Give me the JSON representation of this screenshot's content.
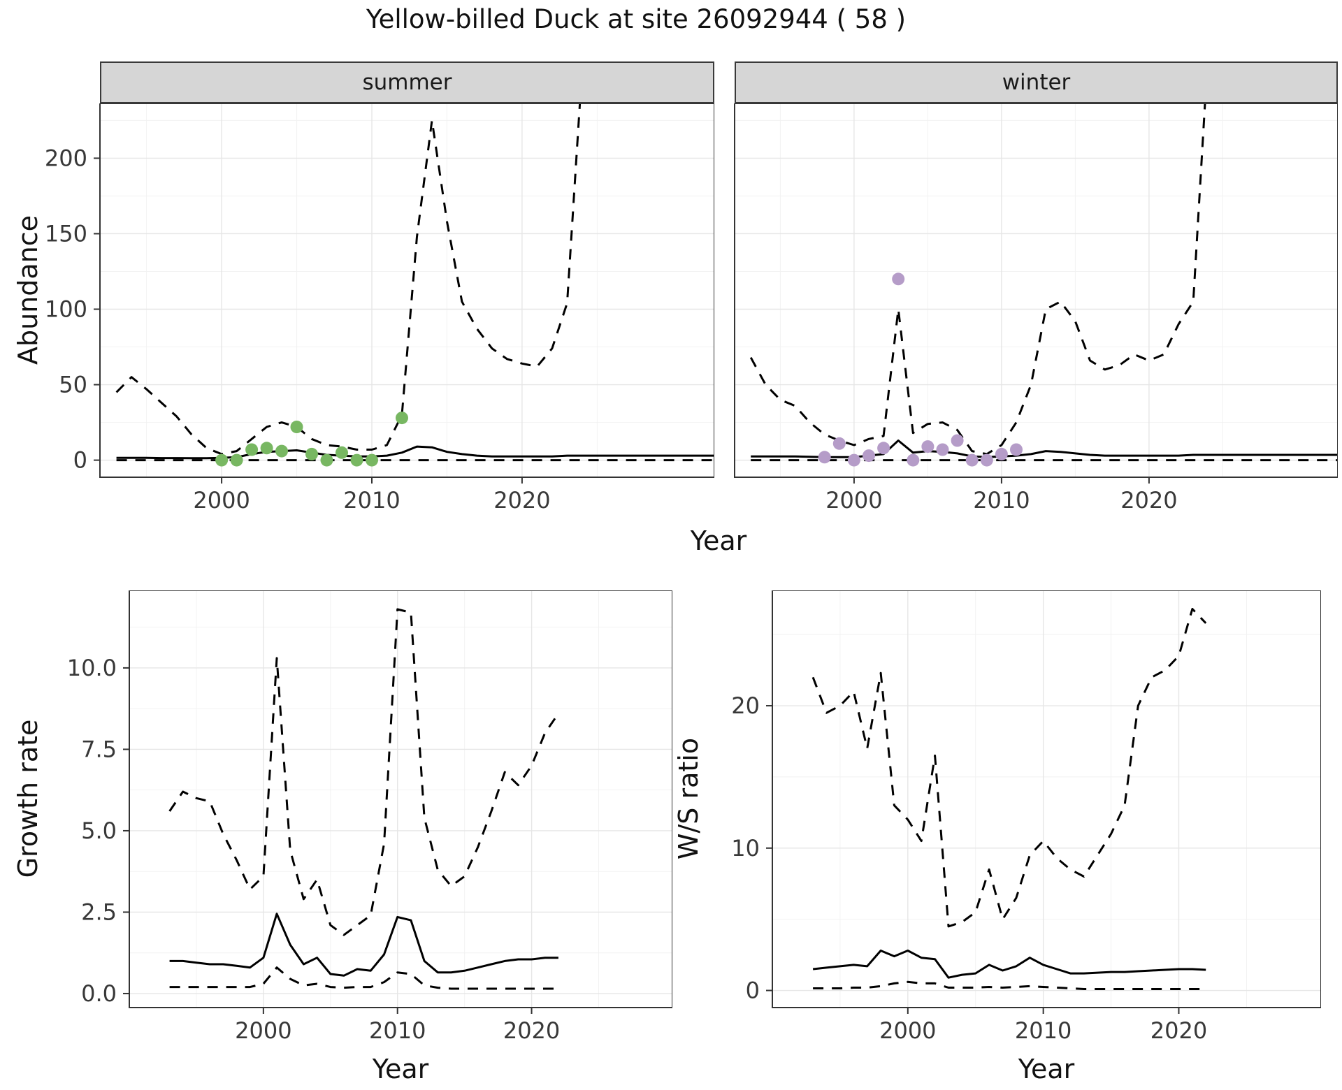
{
  "title": "Yellow-billed Duck at site 26092944 ( 58 )",
  "facets": [
    {
      "label": "summer"
    },
    {
      "label": "winter"
    }
  ],
  "axis_labels": {
    "abundance": "Abundance",
    "growth_rate": "Growth rate",
    "ws_ratio": "W/S ratio",
    "year_top": "Year",
    "year_bottom_left": "Year",
    "year_bottom_right": "Year"
  },
  "colors": {
    "line": "#000000",
    "summer_points": "#78b762",
    "winter_points": "#b59cc8",
    "strip_bg": "#d6d6d6",
    "panel_border": "#333333",
    "grid_major": "#e6e6e6",
    "grid_minor": "#f2f2f2",
    "tick": "#333333"
  },
  "chart_data": [
    {
      "id": "abundance-summer",
      "type": "line",
      "facet": "summer",
      "title": "summer",
      "xlabel": "Year",
      "ylabel": "Abundance",
      "xlim": [
        1991.9,
        2032.8
      ],
      "ylim": [
        -11.3,
        236.3
      ],
      "xticks": [
        2000,
        2010,
        2020
      ],
      "xtick_labels": [
        "2000",
        "2010",
        "2020"
      ],
      "xticks_minor": [
        1995,
        2005,
        2015,
        2025
      ],
      "yticks": [
        0,
        50,
        100,
        150,
        200
      ],
      "ytick_labels": [
        "0",
        "50",
        "100",
        "150",
        "200"
      ],
      "yticks_minor": [
        25,
        75,
        125,
        175,
        225
      ],
      "series": [
        {
          "name": "upper-ci",
          "style": "dashed",
          "x": [
            1993,
            1994,
            1995,
            1996,
            1997,
            1998,
            1999,
            2000,
            2001,
            2002,
            2003,
            2004,
            2005,
            2006,
            2007,
            2008,
            2009,
            2010,
            2011,
            2012,
            2013,
            2014,
            2015,
            2016,
            2017,
            2018,
            2019,
            2020,
            2021,
            2022,
            2023,
            2024
          ],
          "y": [
            45,
            55,
            47,
            38,
            29,
            17,
            8,
            4,
            6,
            14,
            22,
            25,
            22,
            14,
            10,
            9,
            7,
            7,
            10,
            30,
            148,
            225,
            158,
            105,
            87,
            74,
            67,
            64,
            62,
            74,
            104,
            260
          ]
        },
        {
          "name": "median",
          "style": "solid",
          "x": [
            1993,
            1994,
            1995,
            1996,
            1997,
            1998,
            1999,
            2000,
            2001,
            2002,
            2003,
            2004,
            2005,
            2006,
            2007,
            2008,
            2009,
            2010,
            2011,
            2012,
            2013,
            2014,
            2015,
            2016,
            2017,
            2018,
            2019,
            2020,
            2021,
            2022,
            2023,
            2033
          ],
          "y": [
            1.5,
            1.5,
            1.5,
            1.4,
            1.4,
            1.3,
            1.3,
            1.5,
            2,
            4,
            5.5,
            6,
            6.5,
            5,
            3.5,
            3,
            2.5,
            2.5,
            3,
            5,
            9,
            8.5,
            5.5,
            4,
            3,
            2.5,
            2.5,
            2.5,
            2.5,
            2.5,
            3,
            3
          ]
        },
        {
          "name": "lower-ci",
          "style": "dashed",
          "x": [
            1993,
            2033
          ],
          "y": [
            0,
            0
          ]
        }
      ],
      "points": {
        "name": "summer-observation-point",
        "color_key": "summer_points",
        "x": [
          2000,
          2001,
          2002,
          2003,
          2004,
          2005,
          2006,
          2007,
          2008,
          2009,
          2010,
          2012
        ],
        "y": [
          0,
          0,
          7,
          8,
          6,
          22,
          4,
          0,
          5,
          0,
          0,
          28
        ]
      }
    },
    {
      "id": "abundance-winter",
      "type": "line",
      "facet": "winter",
      "title": "winter",
      "xlabel": "Year",
      "ylabel": "Abundance",
      "xlim": [
        1991.9,
        2032.8
      ],
      "ylim": [
        -11.3,
        236.3
      ],
      "xticks": [
        2000,
        2010,
        2020
      ],
      "xtick_labels": [
        "2000",
        "2010",
        "2020"
      ],
      "xticks_minor": [
        1995,
        2005,
        2015,
        2025
      ],
      "yticks": [
        0,
        50,
        100,
        150,
        200
      ],
      "ytick_labels": [
        "0",
        "50",
        "100",
        "150",
        "200"
      ],
      "yticks_minor": [
        25,
        75,
        125,
        175,
        225
      ],
      "series": [
        {
          "name": "upper-ci",
          "style": "dashed",
          "x": [
            1993,
            1994,
            1995,
            1996,
            1997,
            1998,
            1999,
            2000,
            2001,
            2002,
            2003,
            2004,
            2005,
            2006,
            2007,
            2008,
            2009,
            2010,
            2011,
            2012,
            2013,
            2014,
            2015,
            2016,
            2017,
            2018,
            2019,
            2020,
            2021,
            2022,
            2023,
            2024
          ],
          "y": [
            68,
            50,
            40,
            36,
            25,
            17,
            13,
            10,
            14,
            16,
            100,
            18,
            24,
            25,
            20,
            6,
            4,
            10,
            25,
            50,
            100,
            105,
            92,
            66,
            60,
            63,
            70,
            66,
            70,
            90,
            105,
            270
          ]
        },
        {
          "name": "median",
          "style": "solid",
          "x": [
            1993,
            1994,
            1995,
            1996,
            1997,
            1998,
            1999,
            2000,
            2001,
            2002,
            2003,
            2004,
            2005,
            2006,
            2007,
            2008,
            2009,
            2010,
            2011,
            2012,
            2013,
            2014,
            2015,
            2016,
            2017,
            2018,
            2019,
            2020,
            2021,
            2022,
            2023,
            2033
          ],
          "y": [
            2.5,
            2.5,
            2.5,
            2.5,
            2.2,
            2,
            2,
            2,
            3,
            4,
            13,
            5,
            6,
            5.5,
            4.5,
            2.5,
            2,
            2.5,
            3,
            4,
            6,
            5.5,
            4.5,
            3.5,
            3,
            3,
            3,
            3,
            3,
            3,
            3.5,
            3.5
          ]
        },
        {
          "name": "lower-ci",
          "style": "dashed",
          "x": [
            1993,
            2033
          ],
          "y": [
            0,
            0
          ]
        }
      ],
      "points": {
        "name": "winter-observation-point",
        "color_key": "winter_points",
        "x": [
          1998,
          1999,
          2000,
          2001,
          2002,
          2003,
          2004,
          2005,
          2006,
          2007,
          2008,
          2009,
          2010,
          2011
        ],
        "y": [
          2,
          11,
          0,
          3,
          8,
          120,
          0,
          9,
          7,
          13,
          0,
          0,
          4,
          7
        ]
      }
    },
    {
      "id": "growth-rate",
      "type": "line",
      "title": "Growth rate",
      "xlabel": "Year",
      "ylabel": "Growth rate",
      "xlim": [
        1990,
        2030.5
      ],
      "ylim": [
        -0.43,
        12.38
      ],
      "xticks": [
        2000,
        2010,
        2020
      ],
      "xtick_labels": [
        "2000",
        "2010",
        "2020"
      ],
      "xticks_minor": [
        1995,
        2005,
        2015,
        2025
      ],
      "yticks": [
        0,
        2.5,
        5,
        7.5,
        10
      ],
      "ytick_labels": [
        "0.0",
        "2.5",
        "5.0",
        "7.5",
        "10.0"
      ],
      "yticks_minor": [
        1.25,
        3.75,
        6.25,
        8.75,
        11.25
      ],
      "series": [
        {
          "name": "upper-ci",
          "style": "dashed",
          "x": [
            1993,
            1994,
            1995,
            1996,
            1997,
            1998,
            1999,
            2000,
            2001,
            2002,
            2003,
            2004,
            2005,
            2006,
            2007,
            2008,
            2009,
            2010,
            2011,
            2012,
            2013,
            2014,
            2015,
            2016,
            2017,
            2018,
            2019,
            2020,
            2021,
            2022
          ],
          "y": [
            5.6,
            6.2,
            6.0,
            5.9,
            4.9,
            4.1,
            3.2,
            3.6,
            10.3,
            4.4,
            2.9,
            3.5,
            2.1,
            1.8,
            2.1,
            2.4,
            4.6,
            11.8,
            11.7,
            5.4,
            3.8,
            3.3,
            3.6,
            4.5,
            5.6,
            6.8,
            6.4,
            7.0,
            8.0,
            8.6
          ]
        },
        {
          "name": "median",
          "style": "solid",
          "x": [
            1993,
            1994,
            1995,
            1996,
            1997,
            1998,
            1999,
            2000,
            2001,
            2002,
            2003,
            2004,
            2005,
            2006,
            2007,
            2008,
            2009,
            2010,
            2011,
            2012,
            2013,
            2014,
            2015,
            2016,
            2017,
            2018,
            2019,
            2020,
            2021,
            2022
          ],
          "y": [
            1.0,
            1.0,
            0.95,
            0.9,
            0.9,
            0.85,
            0.8,
            1.1,
            2.45,
            1.5,
            0.9,
            1.1,
            0.6,
            0.55,
            0.75,
            0.7,
            1.2,
            2.35,
            2.25,
            1.0,
            0.65,
            0.65,
            0.7,
            0.8,
            0.9,
            1.0,
            1.05,
            1.05,
            1.1,
            1.1
          ]
        },
        {
          "name": "lower-ci",
          "style": "dashed",
          "x": [
            1993,
            1994,
            1995,
            1996,
            1997,
            1998,
            1999,
            2000,
            2001,
            2002,
            2003,
            2004,
            2005,
            2006,
            2007,
            2008,
            2009,
            2010,
            2011,
            2012,
            2013,
            2014,
            2015,
            2016,
            2017,
            2018,
            2019,
            2020,
            2021,
            2022
          ],
          "y": [
            0.2,
            0.2,
            0.2,
            0.2,
            0.2,
            0.2,
            0.2,
            0.3,
            0.8,
            0.45,
            0.25,
            0.3,
            0.2,
            0.18,
            0.2,
            0.2,
            0.35,
            0.65,
            0.6,
            0.25,
            0.18,
            0.15,
            0.15,
            0.15,
            0.15,
            0.15,
            0.15,
            0.15,
            0.15,
            0.15
          ]
        }
      ]
    },
    {
      "id": "ws-ratio",
      "type": "line",
      "title": "W/S ratio",
      "xlabel": "Year",
      "ylabel": "W/S ratio",
      "xlim": [
        1990,
        2030.5
      ],
      "ylim": [
        -1.2,
        28.1
      ],
      "xticks": [
        2000,
        2010,
        2020
      ],
      "xtick_labels": [
        "2000",
        "2010",
        "2020"
      ],
      "xticks_minor": [
        1995,
        2005,
        2015,
        2025
      ],
      "yticks": [
        0,
        10,
        20
      ],
      "ytick_labels": [
        "0",
        "10",
        "20"
      ],
      "yticks_minor": [
        5,
        15,
        25
      ],
      "series": [
        {
          "name": "upper-ci",
          "style": "dashed",
          "x": [
            1993,
            1994,
            1995,
            1996,
            1997,
            1998,
            1999,
            2000,
            2001,
            2002,
            2003,
            2004,
            2005,
            2006,
            2007,
            2008,
            2009,
            2010,
            2011,
            2012,
            2013,
            2014,
            2015,
            2016,
            2017,
            2018,
            2019,
            2020,
            2021,
            2022
          ],
          "y": [
            22.0,
            19.5,
            20.0,
            21.0,
            17.0,
            22.3,
            13.0,
            12.0,
            10.5,
            16.5,
            4.5,
            4.8,
            5.5,
            8.5,
            5.0,
            6.5,
            9.5,
            10.5,
            9.3,
            8.5,
            8.0,
            9.5,
            11.0,
            13.0,
            20.0,
            22.0,
            22.5,
            23.5,
            26.8,
            25.8
          ]
        },
        {
          "name": "median",
          "style": "solid",
          "x": [
            1993,
            1994,
            1995,
            1996,
            1997,
            1998,
            1999,
            2000,
            2001,
            2002,
            2003,
            2004,
            2005,
            2006,
            2007,
            2008,
            2009,
            2010,
            2011,
            2012,
            2013,
            2014,
            2015,
            2016,
            2017,
            2018,
            2019,
            2020,
            2021,
            2022
          ],
          "y": [
            1.5,
            1.6,
            1.7,
            1.8,
            1.7,
            2.8,
            2.4,
            2.8,
            2.3,
            2.2,
            0.9,
            1.1,
            1.2,
            1.8,
            1.4,
            1.7,
            2.3,
            1.8,
            1.5,
            1.2,
            1.2,
            1.25,
            1.3,
            1.3,
            1.35,
            1.4,
            1.45,
            1.5,
            1.5,
            1.45
          ]
        },
        {
          "name": "lower-ci",
          "style": "dashed",
          "x": [
            1993,
            1994,
            1995,
            1996,
            1997,
            1998,
            1999,
            2000,
            2001,
            2002,
            2003,
            2004,
            2005,
            2006,
            2007,
            2008,
            2009,
            2010,
            2011,
            2012,
            2013,
            2014,
            2015,
            2016,
            2017,
            2018,
            2019,
            2020,
            2021,
            2022
          ],
          "y": [
            0.15,
            0.15,
            0.15,
            0.2,
            0.2,
            0.3,
            0.5,
            0.6,
            0.5,
            0.5,
            0.2,
            0.2,
            0.2,
            0.25,
            0.2,
            0.25,
            0.3,
            0.25,
            0.2,
            0.15,
            0.1,
            0.1,
            0.1,
            0.1,
            0.1,
            0.1,
            0.1,
            0.1,
            0.1,
            0.1
          ]
        }
      ]
    }
  ]
}
